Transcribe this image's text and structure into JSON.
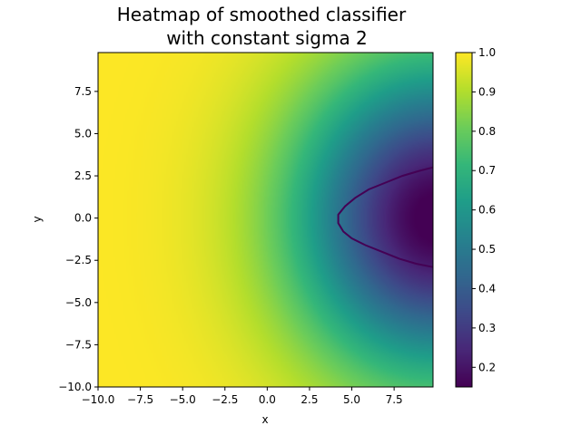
{
  "chart_data": {
    "type": "heatmap",
    "title_line1": "Heatmap of smoothed classifier",
    "title_line2": "with constant sigma 2",
    "xlabel": "x",
    "ylabel": "y",
    "xlim": [
      -10.0,
      9.8
    ],
    "ylim": [
      -10.0,
      9.8
    ],
    "x_ticks": [
      -10.0,
      -7.5,
      -5.0,
      -2.5,
      0.0,
      2.5,
      5.0,
      7.5
    ],
    "x_tick_labels": [
      "−10.0",
      "−7.5",
      "−5.0",
      "−2.5",
      "0.0",
      "2.5",
      "5.0",
      "7.5"
    ],
    "y_ticks": [
      -10.0,
      -7.5,
      -5.0,
      -2.5,
      0.0,
      2.5,
      5.0,
      7.5
    ],
    "y_tick_labels": [
      "−10.0",
      "−7.5",
      "−5.0",
      "−2.5",
      "0.0",
      "2.5",
      "5.0",
      "7.5"
    ],
    "colorbar": {
      "colormap": "viridis",
      "range": [
        0.15,
        1.0
      ],
      "ticks": [
        0.2,
        0.3,
        0.4,
        0.5,
        0.6,
        0.7,
        0.8,
        0.9,
        1.0
      ],
      "tick_labels": [
        "0.2",
        "0.3",
        "0.4",
        "0.5",
        "0.6",
        "0.7",
        "0.8",
        "0.9",
        "1.0"
      ]
    },
    "field": {
      "description_of_values": "value near 1.0 on the left, decreasing to about 0.15 at the right edge near y=0",
      "sample_values": [
        {
          "x": 9.8,
          "y": 0.0,
          "value": 0.15
        },
        {
          "x": 4.2,
          "y": 0.0,
          "value": 0.5
        },
        {
          "x": 0.0,
          "y": 0.0,
          "value": 0.75
        },
        {
          "x": -4.0,
          "y": 0.0,
          "value": 0.98
        },
        {
          "x": 9.8,
          "y": 3.0,
          "value": 0.5
        },
        {
          "x": 9.8,
          "y": 5.0,
          "value": 0.7
        },
        {
          "x": -10.0,
          "y": 0.0,
          "value": 1.0
        }
      ]
    },
    "contour": {
      "level": 0.5,
      "color": "#440154",
      "points": [
        [
          9.8,
          3.0
        ],
        [
          9.0,
          2.8
        ],
        [
          8.0,
          2.5
        ],
        [
          7.0,
          2.1
        ],
        [
          6.0,
          1.7
        ],
        [
          5.2,
          1.2
        ],
        [
          4.6,
          0.7
        ],
        [
          4.2,
          0.2
        ],
        [
          4.2,
          -0.3
        ],
        [
          4.5,
          -0.8
        ],
        [
          5.0,
          -1.2
        ],
        [
          5.8,
          -1.6
        ],
        [
          6.8,
          -2.0
        ],
        [
          7.8,
          -2.4
        ],
        [
          8.8,
          -2.7
        ],
        [
          9.8,
          -2.9
        ]
      ]
    }
  }
}
